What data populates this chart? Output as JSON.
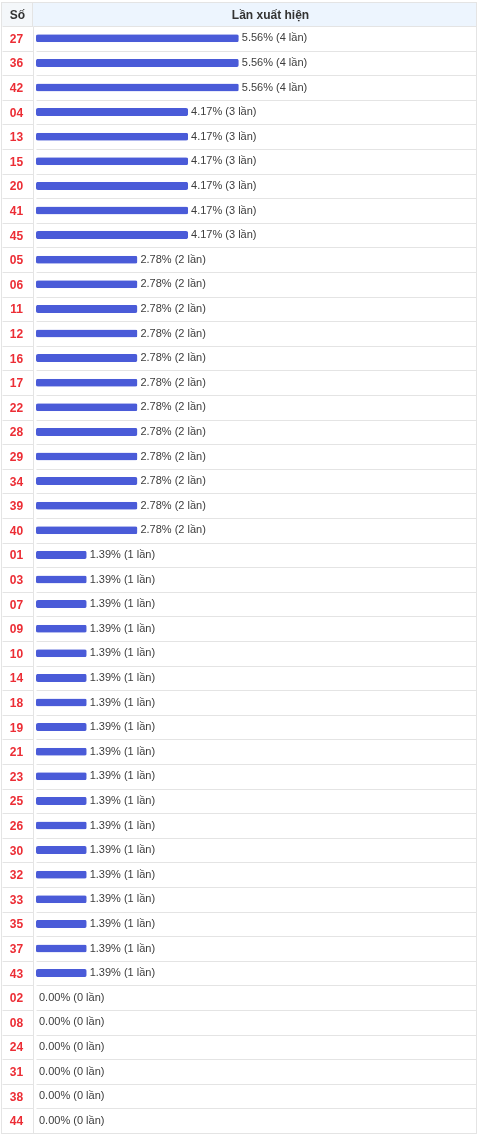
{
  "chart_data": {
    "type": "bar",
    "orientation": "horizontal",
    "xlabel": "Lần xuất hiện",
    "ylabel": "Số",
    "categories": [
      "27",
      "36",
      "42",
      "04",
      "13",
      "15",
      "20",
      "41",
      "45",
      "05",
      "06",
      "11",
      "12",
      "16",
      "17",
      "22",
      "28",
      "29",
      "34",
      "39",
      "40",
      "01",
      "03",
      "07",
      "09",
      "10",
      "14",
      "18",
      "19",
      "21",
      "23",
      "25",
      "26",
      "30",
      "32",
      "33",
      "35",
      "37",
      "43",
      "02",
      "08",
      "24",
      "31",
      "38",
      "44"
    ],
    "values": [
      5.56,
      5.56,
      5.56,
      4.17,
      4.17,
      4.17,
      4.17,
      4.17,
      4.17,
      2.78,
      2.78,
      2.78,
      2.78,
      2.78,
      2.78,
      2.78,
      2.78,
      2.78,
      2.78,
      2.78,
      2.78,
      1.39,
      1.39,
      1.39,
      1.39,
      1.39,
      1.39,
      1.39,
      1.39,
      1.39,
      1.39,
      1.39,
      1.39,
      1.39,
      1.39,
      1.39,
      1.39,
      1.39,
      1.39,
      0,
      0,
      0,
      0,
      0,
      0
    ],
    "value_labels": [
      "5.56% (4 lần)",
      "5.56% (4 lần)",
      "5.56% (4 lần)",
      "4.17% (3 lần)",
      "4.17% (3 lần)",
      "4.17% (3 lần)",
      "4.17% (3 lần)",
      "4.17% (3 lần)",
      "4.17% (3 lần)",
      "2.78% (2 lần)",
      "2.78% (2 lần)",
      "2.78% (2 lần)",
      "2.78% (2 lần)",
      "2.78% (2 lần)",
      "2.78% (2 lần)",
      "2.78% (2 lần)",
      "2.78% (2 lần)",
      "2.78% (2 lần)",
      "2.78% (2 lần)",
      "2.78% (2 lần)",
      "2.78% (2 lần)",
      "1.39% (1 lần)",
      "1.39% (1 lần)",
      "1.39% (1 lần)",
      "1.39% (1 lần)",
      "1.39% (1 lần)",
      "1.39% (1 lần)",
      "1.39% (1 lần)",
      "1.39% (1 lần)",
      "1.39% (1 lần)",
      "1.39% (1 lần)",
      "1.39% (1 lần)",
      "1.39% (1 lần)",
      "1.39% (1 lần)",
      "1.39% (1 lần)",
      "1.39% (1 lần)",
      "1.39% (1 lần)",
      "1.39% (1 lần)",
      "1.39% (1 lần)",
      "0.00% (0 lần)",
      "0.00% (0 lần)",
      "0.00% (0 lần)",
      "0.00% (0 lần)",
      "0.00% (0 lần)",
      "0.00% (0 lần)"
    ],
    "color": "#4a5bd8",
    "grid": "y",
    "tick_labels": "y"
  }
}
